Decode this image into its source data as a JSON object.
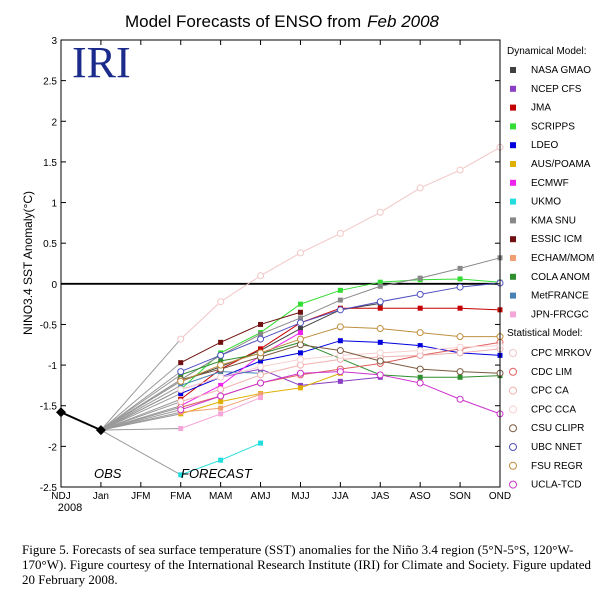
{
  "chart_data": {
    "type": "line",
    "title_prefix": "Model Forecasts of ENSO from",
    "title_date": "Feb 2008",
    "logo_text": "IRI",
    "ylabel": "NINO3.4 SST Anomaly(°C)",
    "ylim": [
      -2.5,
      3
    ],
    "yticks": [
      -2.5,
      -2,
      -1.5,
      -1,
      -0.5,
      0,
      0.5,
      1,
      1.5,
      2,
      2.5,
      3
    ],
    "categories": [
      "NDJ",
      "Jan",
      "JFM",
      "FMA",
      "MAM",
      "AMJ",
      "MJJ",
      "JJA",
      "JAS",
      "ASO",
      "SON",
      "OND"
    ],
    "year_label": "2008",
    "obs_label": "OBS",
    "forecast_label": "FORECAST",
    "observed": [
      {
        "x": "NDJ",
        "y": -1.58
      },
      {
        "x": "Jan",
        "y": -1.8
      }
    ],
    "dynamical_title": "Dynamical Model:",
    "statistical_title": "Statistical Model:",
    "series": [
      {
        "name": "NASA GMAO",
        "group": "dynamical",
        "color": "#404040",
        "marker": "filled",
        "values": [
          null,
          null,
          null,
          -1.2,
          -1.02,
          -0.82,
          -0.55,
          -0.32,
          -0.24,
          null,
          null,
          null
        ]
      },
      {
        "name": "NCEP CFS",
        "group": "dynamical",
        "color": "#8b3fc4",
        "marker": "filled",
        "values": [
          null,
          null,
          null,
          -1.3,
          -1.15,
          -1.05,
          -1.25,
          -1.2,
          -1.15,
          null,
          null,
          null
        ]
      },
      {
        "name": "JMA",
        "group": "dynamical",
        "color": "#c40000",
        "marker": "filled",
        "values": [
          null,
          null,
          null,
          -1.42,
          -1.05,
          -0.8,
          -0.48,
          -0.3,
          -0.3,
          -0.3,
          -0.3,
          -0.32
        ]
      },
      {
        "name": "SCRIPPS",
        "group": "dynamical",
        "color": "#33dd33",
        "marker": "filled",
        "values": [
          null,
          null,
          null,
          -1.3,
          -0.85,
          -0.6,
          -0.25,
          -0.08,
          0.02,
          0.05,
          0.06,
          0.02
        ]
      },
      {
        "name": "LDEO",
        "group": "dynamical",
        "color": "#0000dd",
        "marker": "filled",
        "values": [
          null,
          null,
          null,
          -1.35,
          -1.15,
          -0.95,
          -0.85,
          -0.7,
          -0.72,
          -0.76,
          -0.85,
          -0.88
        ]
      },
      {
        "name": "AUS/POAMA",
        "group": "dynamical",
        "color": "#e0b000",
        "marker": "filled",
        "values": [
          null,
          null,
          null,
          -1.6,
          -1.45,
          -1.35,
          -1.28,
          -1.1,
          null,
          null,
          null,
          null
        ]
      },
      {
        "name": "ECMWF",
        "group": "dynamical",
        "color": "#ee22ee",
        "marker": "filled",
        "values": [
          null,
          null,
          null,
          -1.5,
          -1.25,
          -0.88,
          -0.6,
          null,
          null,
          null,
          null,
          null
        ]
      },
      {
        "name": "UKMO",
        "group": "dynamical",
        "color": "#22dddd",
        "marker": "filled",
        "values": [
          null,
          null,
          null,
          -2.35,
          -2.17,
          -1.96,
          null,
          null,
          null,
          null,
          null,
          null
        ]
      },
      {
        "name": "KMA SNU",
        "group": "dynamical",
        "color": "#888888",
        "marker": "filled",
        "values": [
          null,
          null,
          null,
          -1.18,
          -0.88,
          -0.62,
          -0.42,
          -0.2,
          -0.03,
          0.07,
          0.19,
          0.32
        ]
      },
      {
        "name": "ESSIC ICM",
        "group": "dynamical",
        "color": "#701010",
        "marker": "filled",
        "values": [
          null,
          null,
          null,
          -0.97,
          -0.72,
          -0.5,
          -0.35,
          null,
          null,
          null,
          null,
          null
        ]
      },
      {
        "name": "ECHAM/MOM",
        "group": "dynamical",
        "color": "#f0a070",
        "marker": "filled",
        "values": [
          null,
          null,
          null,
          -1.58,
          -1.53,
          -1.36,
          null,
          null,
          null,
          null,
          null,
          null
        ]
      },
      {
        "name": "COLA ANOM",
        "group": "dynamical",
        "color": "#2f8f2f",
        "marker": "filled",
        "values": [
          null,
          null,
          null,
          -1.12,
          -0.95,
          -0.86,
          -0.72,
          -0.92,
          -1.12,
          -1.15,
          -1.15,
          -1.13
        ]
      },
      {
        "name": "MetFRANCE",
        "group": "dynamical",
        "color": "#4682b4",
        "marker": "filled",
        "values": [
          null,
          null,
          null,
          -1.25,
          -1.08,
          -1.1,
          null,
          null,
          null,
          null,
          null,
          null
        ]
      },
      {
        "name": "JPN-FRCGC",
        "group": "dynamical",
        "color": "#f4a6d8",
        "marker": "filled",
        "values": [
          null,
          null,
          null,
          -1.78,
          -1.6,
          -1.4,
          null,
          null,
          null,
          null,
          null,
          null
        ]
      },
      {
        "name": "CPC MRKOV",
        "group": "statistical",
        "color": "#f2c6c6",
        "marker": "hollow",
        "values": [
          null,
          null,
          null,
          -0.68,
          -0.22,
          0.1,
          0.38,
          0.62,
          0.88,
          1.18,
          1.4,
          1.68
        ]
      },
      {
        "name": "CDC LIM",
        "group": "statistical",
        "color": "#e06060",
        "marker": "hollow",
        "values": [
          null,
          null,
          null,
          -1.52,
          -1.38,
          -1.22,
          -1.12,
          -1.05,
          -0.98,
          -0.88,
          -0.8,
          -0.72
        ]
      },
      {
        "name": "CPC CA",
        "group": "statistical",
        "color": "#f0b0b0",
        "marker": "hollow",
        "values": [
          null,
          null,
          null,
          -1.45,
          -1.3,
          -1.12,
          -1.0,
          -0.93,
          -0.9,
          -0.88,
          -0.85,
          -0.8
        ]
      },
      {
        "name": "CPC CCA",
        "group": "statistical",
        "color": "#f8d0d0",
        "marker": "hollow",
        "values": [
          null,
          null,
          null,
          -1.3,
          -1.15,
          -1.02,
          -0.93,
          -0.88,
          -0.85,
          -0.82,
          -0.78,
          -0.76
        ]
      },
      {
        "name": "CSU CLIPR",
        "group": "statistical",
        "color": "#7a5a40",
        "marker": "hollow",
        "values": [
          null,
          null,
          null,
          -1.18,
          -1.05,
          -0.9,
          -0.75,
          -0.82,
          -0.95,
          -1.05,
          -1.08,
          -1.1
        ]
      },
      {
        "name": "UBC NNET",
        "group": "statistical",
        "color": "#5050c0",
        "marker": "hollow",
        "values": [
          null,
          null,
          null,
          -1.08,
          -0.88,
          -0.68,
          -0.48,
          -0.32,
          -0.22,
          -0.13,
          -0.04,
          0.01
        ]
      },
      {
        "name": "FSU REGR",
        "group": "statistical",
        "color": "#c09040",
        "marker": "hollow",
        "values": [
          null,
          null,
          null,
          -1.2,
          -1.0,
          -0.85,
          -0.68,
          -0.53,
          -0.55,
          -0.6,
          -0.65,
          -0.65
        ]
      },
      {
        "name": "UCLA-TCD",
        "group": "statistical",
        "color": "#cc33cc",
        "marker": "hollow",
        "values": [
          null,
          null,
          null,
          -1.55,
          -1.38,
          -1.22,
          -1.1,
          -1.08,
          -1.12,
          -1.22,
          -1.42,
          -1.6
        ]
      }
    ]
  },
  "caption": {
    "text": "Figure 5. Forecasts of sea surface temperature (SST) anomalies for the Niño 3.4 region (5°N-5°S, 120°W-170°W).  Figure courtesy of the International Research Institute (IRI) for Climate and Society.  Figure updated 20 February 2008."
  }
}
